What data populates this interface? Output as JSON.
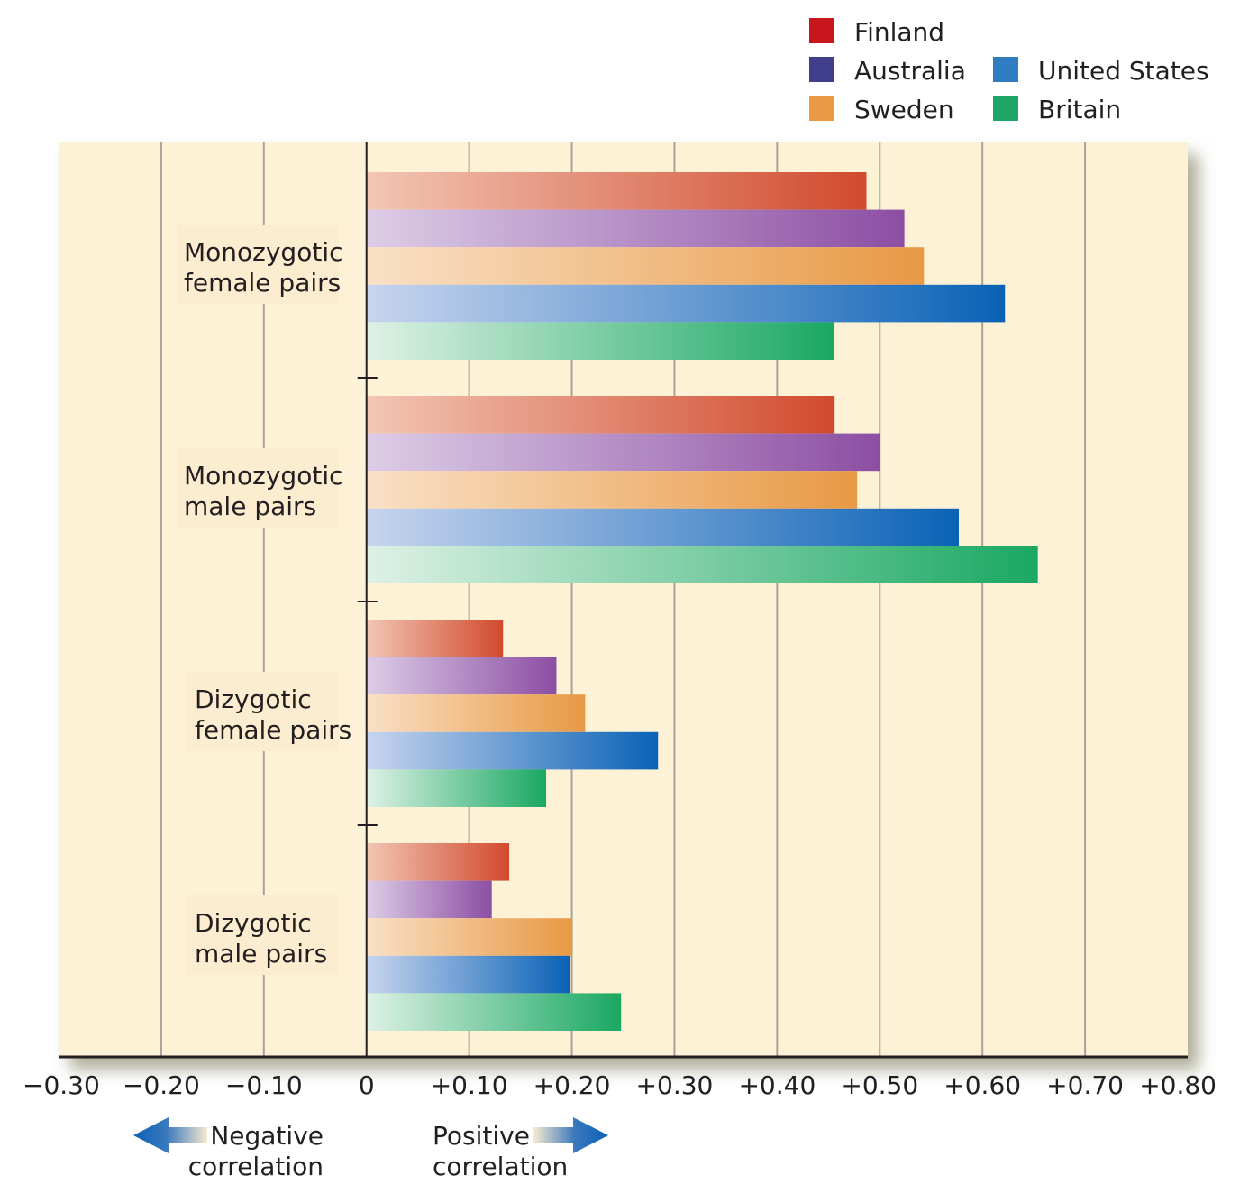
{
  "chart_data": {
    "type": "bar",
    "orientation": "horizontal",
    "title": "",
    "xlabel": "",
    "ylabel": "",
    "xlim": [
      -0.3,
      0.8
    ],
    "grid": true,
    "legend_position": "top-right",
    "categories": [
      [
        "Monozygotic",
        "female pairs"
      ],
      [
        "Monozygotic",
        "male pairs"
      ],
      [
        "Dizygotic",
        "female pairs"
      ],
      [
        "Dizygotic",
        "male pairs"
      ]
    ],
    "series": [
      {
        "name": "Finland",
        "color": "#c8161d",
        "grad_start": "#f2c6b4",
        "grad_end": "#d14a2e",
        "values": [
          0.487,
          0.456,
          0.133,
          0.139
        ]
      },
      {
        "name": "Australia",
        "color": "#413e8e",
        "grad_start": "#ddcde6",
        "grad_end": "#8c4ea3",
        "values": [
          0.524,
          0.5,
          0.185,
          0.122
        ]
      },
      {
        "name": "Sweden",
        "color": "#ea9a45",
        "grad_start": "#f9e0c6",
        "grad_end": "#e89944",
        "values": [
          0.543,
          0.478,
          0.213,
          0.2
        ]
      },
      {
        "name": "United States",
        "color": "#2f7cc1",
        "grad_start": "#c8d5ee",
        "grad_end": "#0a62b6",
        "values": [
          0.622,
          0.577,
          0.284,
          0.198
        ]
      },
      {
        "name": "Britain",
        "color": "#1ea466",
        "grad_start": "#def1e6",
        "grad_end": "#1aa862",
        "values": [
          0.455,
          0.654,
          0.175,
          0.248
        ]
      }
    ],
    "xticks": [
      -0.3,
      -0.2,
      -0.1,
      0,
      0.1,
      0.2,
      0.3,
      0.4,
      0.5,
      0.6,
      0.7,
      0.8
    ],
    "xtick_labels": [
      "−0.30",
      "−0.20",
      "−0.10",
      "0",
      "+0.10",
      "+0.20",
      "+0.30",
      "+0.40",
      "+0.50",
      "+0.60",
      "+0.70",
      "+0.80"
    ],
    "annotations": {
      "negative": [
        "Negative",
        "correlation"
      ],
      "positive": [
        "Positive",
        "correlation"
      ]
    }
  },
  "colors": {
    "plot_background": "#fdf1d6",
    "gridline": "#a8a39a",
    "axis": "#231f20",
    "arrow": "#0a62b6"
  }
}
